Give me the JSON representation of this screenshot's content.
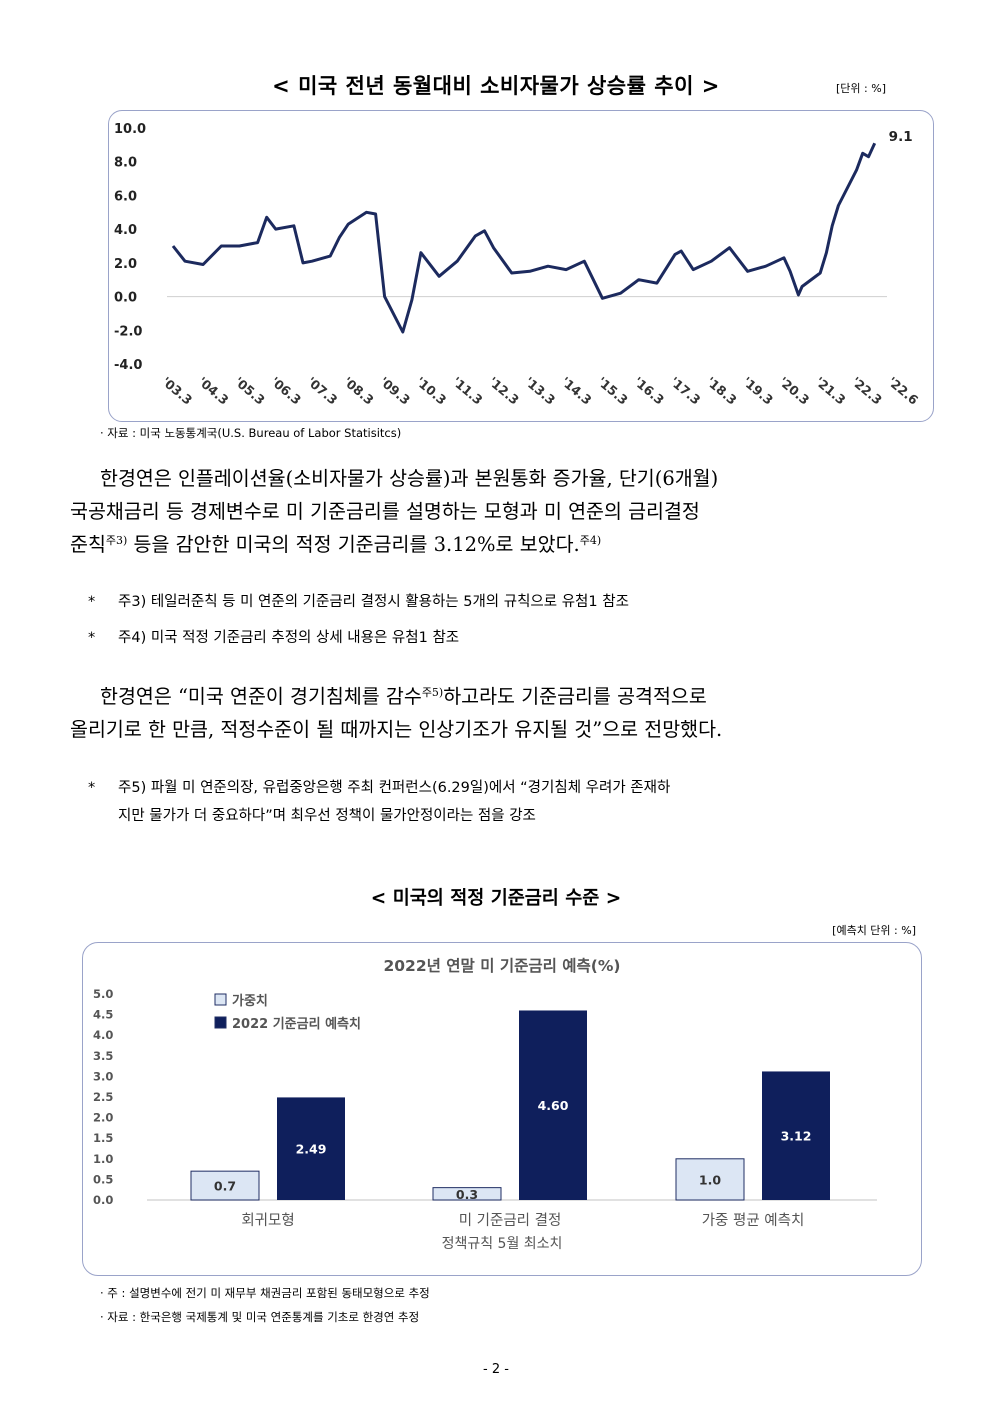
{
  "chart1": {
    "title": "< 미국 전년 동월대비 소비자물가 상승률 추이 >",
    "unit": "[단위 : %]",
    "source": "· 자료 : 미국 노동통계국(U.S. Bureau of Labor Statisitcs)",
    "chart_data": {
      "type": "line",
      "y_ticks": [
        "10.0",
        "8.0",
        "6.0",
        "4.0",
        "2.0",
        "0.0",
        "-2.0",
        "-4.0"
      ],
      "ylim": [
        -4,
        10
      ],
      "x_ticks": [
        "'03.3",
        "'04.3",
        "'05.3",
        "'06.3",
        "'07.3",
        "'08.3",
        "'09.3",
        "'10.3",
        "'11.3",
        "'12.3",
        "'13.3",
        "'14.3",
        "'15.3",
        "'16.3",
        "'17.3",
        "'18.3",
        "'19.3",
        "'20.3",
        "'21.3",
        "'22.3",
        "'22.6"
      ],
      "end_label": "9.1",
      "color": "#1c2a5e",
      "x": [
        2003.17,
        2003.5,
        2004.0,
        2004.5,
        2005.0,
        2005.5,
        2005.75,
        2006.0,
        2006.5,
        2006.75,
        2007.0,
        2007.5,
        2007.75,
        2008.0,
        2008.5,
        2008.75,
        2009.0,
        2009.5,
        2009.75,
        2010.0,
        2010.5,
        2011.0,
        2011.5,
        2011.75,
        2012.0,
        2012.5,
        2013.0,
        2013.5,
        2014.0,
        2014.5,
        2015.0,
        2015.5,
        2016.0,
        2016.5,
        2017.0,
        2017.17,
        2017.5,
        2018.0,
        2018.5,
        2019.0,
        2019.5,
        2020.0,
        2020.17,
        2020.4,
        2020.5,
        2021.0,
        2021.17,
        2021.33,
        2021.5,
        2022.0,
        2022.17,
        2022.33,
        2022.5
      ],
      "values": [
        3.0,
        2.1,
        1.9,
        3.0,
        3.0,
        3.2,
        4.7,
        4.0,
        4.2,
        2.0,
        2.1,
        2.4,
        3.5,
        4.3,
        5.0,
        4.9,
        0.0,
        -2.1,
        -0.2,
        2.6,
        1.2,
        2.1,
        3.6,
        3.9,
        2.9,
        1.4,
        1.5,
        1.8,
        1.6,
        2.1,
        -0.1,
        0.2,
        1.0,
        0.8,
        2.5,
        2.7,
        1.6,
        2.1,
        2.9,
        1.5,
        1.8,
        2.3,
        1.5,
        0.1,
        0.6,
        1.4,
        2.6,
        4.2,
        5.4,
        7.5,
        8.5,
        8.3,
        9.1
      ]
    }
  },
  "para1": {
    "line1": "한경연은 인플레이션율(소비자물가 상승률)과 본원통화 증가율, 단기(6개월)",
    "line2": "국공채금리 등 경제변수로 미 기준금리를 설명하는 모형과 미 연준의 금리결정",
    "line3a": "준칙",
    "sup3": "주3)",
    "line3b": " 등을 감안한 미국의 적정 기준금리를 3.12%로 보았다.",
    "sup4": "주4)"
  },
  "note3": {
    "star": "*",
    "text": "주3) 테일러준칙 등 미 연준의 기준금리 결정시 활용하는 5개의 규칙으로 유첨1 참조"
  },
  "note4": {
    "star": "*",
    "text": "주4) 미국 적정 기준금리 추정의 상세 내용은 유첨1 참조"
  },
  "para2": {
    "line1a": "한경연은 “미국 연준이 경기침체를 감수",
    "sup5": "주5)",
    "line1b": "하고라도 기준금리를 공격적으로",
    "line2": "올리기로 한 만큼, 적정수준이 될 때까지는 인상기조가 유지될 것”으로 전망했다."
  },
  "note5": {
    "star": "*",
    "line1": "주5) 파월 미 연준의장, 유럽중앙은행 주최 컨퍼런스(6.29일)에서 “경기침체 우려가 존재하",
    "line2": "지만 물가가 더 중요하다”며 최우선 정책이 물가안정이라는 점을 강조"
  },
  "chart2": {
    "title": "< 미국의 적정 기준금리 수준 >",
    "unit": "[예측치 단위 : %]",
    "note": "· 주 : 설명변수에 전기 미 재무부 채권금리 포함된 동태모형으로 추정",
    "source": "· 자료 : 한국은행 국제통계 및 미국 연준통계를 기초로 한경연 추정",
    "chart_data": {
      "type": "bar",
      "title": "2022년 연말 미 기준금리 예측(%)",
      "y_ticks": [
        "5.0",
        "4.5",
        "4.0",
        "3.5",
        "3.0",
        "2.5",
        "2.0",
        "1.5",
        "1.0",
        "0.5",
        "0.0"
      ],
      "ylim": [
        0,
        5
      ],
      "categories": [
        "회귀모형",
        "미 기준금리 결정",
        "가중 평균 예측치"
      ],
      "category_line2": [
        "",
        "정책규칙 5월 최소치",
        ""
      ],
      "series": [
        {
          "name": "가중치",
          "values": [
            0.7,
            0.3,
            1.0
          ],
          "labels": [
            "0.7",
            "0.3",
            "1.0"
          ],
          "color": "#dce6f4"
        },
        {
          "name": "2022 기준금리 예측치",
          "values": [
            2.49,
            4.6,
            3.12
          ],
          "labels": [
            "2.49",
            "4.60",
            "3.12"
          ],
          "color": "#0f1f5c"
        }
      ]
    }
  },
  "page_number": "- 2 -"
}
